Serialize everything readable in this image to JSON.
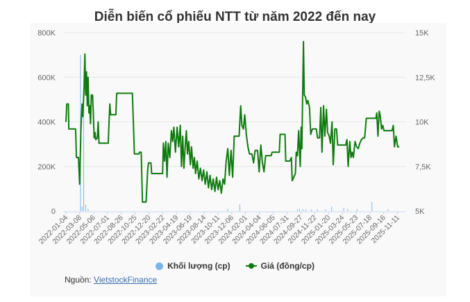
{
  "title": "Diễn biến cổ phiếu NTT từ năm 2022 đến nay",
  "legend": {
    "volume_label": "Khối lượng (cp)",
    "price_label": "Giá (đồng/cp)"
  },
  "source": {
    "prefix": "Nguồn: ",
    "link_text": "VietstockFinance"
  },
  "colors": {
    "price_line": "#0f7a0f",
    "volume_bar": "#7cb5ec",
    "grid": "#e6e6e6",
    "axis_text": "#666666"
  },
  "chart_data": {
    "type": "line",
    "title": "Diễn biến cổ phiếu NTT từ năm 2022 đến nay",
    "xlabel": "",
    "ylabel_left": "Khối lượng (cp)",
    "ylabel_right": "Giá (đồng/cp)",
    "ylim_left": [
      0,
      800000
    ],
    "ylim_right": [
      5000,
      15000
    ],
    "yticks_left": [
      "0",
      "200K",
      "400K",
      "600K",
      "800K"
    ],
    "yticks_right": [
      "5K",
      "7,5K",
      "10K",
      "12,5K",
      "15K"
    ],
    "x_tick_labels": [
      "2022-01-04",
      "2022-03-08",
      "2022-05-06",
      "2022-07-01",
      "2022-08-26",
      "2022-10-25",
      "2022-12-20",
      "2023-02-22",
      "2023-04-19",
      "2023-06-19",
      "2023-08-14",
      "2023-10-11",
      "2023-12-06",
      "2024-02-01",
      "2024-04-04",
      "2024-06-05",
      "2024-07-31",
      "2024-09-27",
      "2024-11-22",
      "2025-01-20",
      "2025-03-24",
      "2025-05-23",
      "2025-07-18",
      "2025-09-16",
      "2025-11-11"
    ],
    "grid": true,
    "legend_position": "bottom",
    "series": [
      {
        "name": "Giá (đồng/cp)",
        "type": "line",
        "axis": "right",
        "points": [
          [
            0.0,
            10000
          ],
          [
            0.002,
            11000
          ],
          [
            0.006,
            11000
          ],
          [
            0.007,
            9600
          ],
          [
            0.024,
            9600
          ],
          [
            0.026,
            8000
          ],
          [
            0.031,
            8000
          ],
          [
            0.034,
            6500
          ],
          [
            0.037,
            9500
          ],
          [
            0.04,
            11000
          ],
          [
            0.042,
            10300
          ],
          [
            0.045,
            12000
          ],
          [
            0.047,
            13800
          ],
          [
            0.049,
            11500
          ],
          [
            0.051,
            12800
          ],
          [
            0.053,
            10900
          ],
          [
            0.055,
            12500
          ],
          [
            0.057,
            10500
          ],
          [
            0.059,
            10900
          ],
          [
            0.061,
            9900
          ],
          [
            0.063,
            11500
          ],
          [
            0.066,
            11500
          ],
          [
            0.068,
            10500
          ],
          [
            0.07,
            9100
          ],
          [
            0.072,
            9400
          ],
          [
            0.074,
            9000
          ],
          [
            0.078,
            9100
          ],
          [
            0.08,
            10000
          ],
          [
            0.082,
            8800
          ],
          [
            0.105,
            8800
          ],
          [
            0.107,
            9900
          ],
          [
            0.109,
            11000
          ],
          [
            0.111,
            10400
          ],
          [
            0.124,
            10400
          ],
          [
            0.126,
            11600
          ],
          [
            0.165,
            11600
          ],
          [
            0.17,
            8200
          ],
          [
            0.181,
            8200
          ],
          [
            0.183,
            8300
          ],
          [
            0.187,
            8300
          ],
          [
            0.19,
            5500
          ],
          [
            0.199,
            5500
          ],
          [
            0.201,
            6400
          ],
          [
            0.203,
            7300
          ],
          [
            0.205,
            7700
          ],
          [
            0.211,
            7700
          ],
          [
            0.213,
            7100
          ],
          [
            0.24,
            7100
          ],
          [
            0.242,
            8800
          ],
          [
            0.245,
            7800
          ],
          [
            0.248,
            8900
          ],
          [
            0.251,
            6900
          ],
          [
            0.254,
            8800
          ],
          [
            0.258,
            8000
          ],
          [
            0.262,
            9500
          ],
          [
            0.265,
            8900
          ],
          [
            0.268,
            9700
          ],
          [
            0.272,
            8300
          ],
          [
            0.276,
            9700
          ],
          [
            0.28,
            8600
          ],
          [
            0.284,
            9800
          ],
          [
            0.287,
            7500
          ],
          [
            0.29,
            9200
          ],
          [
            0.293,
            7400
          ],
          [
            0.296,
            8500
          ],
          [
            0.299,
            9500
          ],
          [
            0.302,
            8200
          ],
          [
            0.305,
            8900
          ],
          [
            0.309,
            7600
          ],
          [
            0.312,
            8600
          ],
          [
            0.316,
            7400
          ],
          [
            0.319,
            8000
          ],
          [
            0.322,
            7100
          ],
          [
            0.326,
            7800
          ],
          [
            0.33,
            6800
          ],
          [
            0.334,
            7400
          ],
          [
            0.338,
            6700
          ],
          [
            0.342,
            7300
          ],
          [
            0.346,
            6500
          ],
          [
            0.35,
            7200
          ],
          [
            0.354,
            6300
          ],
          [
            0.358,
            7000
          ],
          [
            0.362,
            6200
          ],
          [
            0.366,
            6800
          ],
          [
            0.37,
            6100
          ],
          [
            0.374,
            6900
          ],
          [
            0.378,
            6200
          ],
          [
            0.382,
            6700
          ],
          [
            0.386,
            6000
          ],
          [
            0.39,
            6800
          ],
          [
            0.394,
            6500
          ],
          [
            0.398,
            7800
          ],
          [
            0.402,
            8500
          ],
          [
            0.406,
            7000
          ],
          [
            0.41,
            8400
          ],
          [
            0.414,
            6900
          ],
          [
            0.418,
            9200
          ],
          [
            0.43,
            9200
          ],
          [
            0.434,
            10900
          ],
          [
            0.437,
            9800
          ],
          [
            0.441,
            9600
          ],
          [
            0.444,
            10400
          ],
          [
            0.448,
            9300
          ],
          [
            0.452,
            8600
          ],
          [
            0.456,
            8200
          ],
          [
            0.462,
            8200
          ],
          [
            0.466,
            7700
          ],
          [
            0.47,
            8400
          ],
          [
            0.476,
            8400
          ],
          [
            0.48,
            7200
          ],
          [
            0.484,
            8700
          ],
          [
            0.488,
            7700
          ],
          [
            0.492,
            7200
          ],
          [
            0.496,
            8100
          ],
          [
            0.51,
            8100
          ],
          [
            0.512,
            8300
          ],
          [
            0.53,
            8300
          ],
          [
            0.532,
            9300
          ],
          [
            0.544,
            9300
          ],
          [
            0.546,
            7800
          ],
          [
            0.556,
            7800
          ],
          [
            0.56,
            8000
          ],
          [
            0.562,
            6700
          ],
          [
            0.566,
            6900
          ],
          [
            0.57,
            7100
          ],
          [
            0.572,
            8300
          ],
          [
            0.575,
            8100
          ],
          [
            0.578,
            9500
          ],
          [
            0.58,
            8500
          ],
          [
            0.582,
            7500
          ],
          [
            0.584,
            9700
          ],
          [
            0.586,
            8500
          ],
          [
            0.59,
            14500
          ],
          [
            0.592,
            11500
          ],
          [
            0.595,
            11400
          ],
          [
            0.598,
            11000
          ],
          [
            0.601,
            11200
          ],
          [
            0.605,
            10800
          ],
          [
            0.608,
            9300
          ],
          [
            0.612,
            9600
          ],
          [
            0.622,
            9600
          ],
          [
            0.625,
            9100
          ],
          [
            0.63,
            9100
          ],
          [
            0.633,
            10800
          ],
          [
            0.636,
            8300
          ],
          [
            0.64,
            10900
          ],
          [
            0.643,
            9200
          ],
          [
            0.647,
            10700
          ],
          [
            0.65,
            9400
          ],
          [
            0.654,
            9200
          ],
          [
            0.657,
            8800
          ],
          [
            0.661,
            10000
          ],
          [
            0.664,
            7600
          ],
          [
            0.668,
            9600
          ],
          [
            0.672,
            9600
          ],
          [
            0.675,
            8700
          ],
          [
            0.695,
            8700
          ],
          [
            0.698,
            9000
          ],
          [
            0.701,
            7500
          ],
          [
            0.705,
            8900
          ],
          [
            0.708,
            8000
          ],
          [
            0.711,
            8300
          ],
          [
            0.714,
            8000
          ],
          [
            0.718,
            8900
          ],
          [
            0.722,
            8600
          ],
          [
            0.726,
            8500
          ],
          [
            0.73,
            8800
          ],
          [
            0.734,
            9000
          ],
          [
            0.738,
            9100
          ],
          [
            0.742,
            9100
          ],
          [
            0.746,
            10200
          ],
          [
            0.76,
            10200
          ],
          [
            0.77,
            10200
          ],
          [
            0.772,
            10500
          ],
          [
            0.775,
            9200
          ],
          [
            0.778,
            10600
          ],
          [
            0.781,
            10300
          ],
          [
            0.784,
            9600
          ],
          [
            0.787,
            9800
          ],
          [
            0.79,
            9500
          ],
          [
            0.81,
            9500
          ],
          [
            0.813,
            9800
          ],
          [
            0.816,
            8600
          ],
          [
            0.82,
            9200
          ],
          [
            0.824,
            8600
          ],
          [
            0.828,
            8600
          ]
        ]
      },
      {
        "name": "Khối lượng (cp)",
        "type": "bar",
        "axis": "left",
        "bars": [
          [
            0.036,
            700000
          ],
          [
            0.04,
            20000
          ],
          [
            0.044,
            550000
          ],
          [
            0.049,
            30000
          ],
          [
            0.055,
            10000
          ],
          [
            0.402,
            10000
          ],
          [
            0.432,
            30000
          ],
          [
            0.575,
            8000
          ],
          [
            0.58,
            10000
          ],
          [
            0.588,
            8000
          ],
          [
            0.596,
            8000
          ],
          [
            0.61,
            8000
          ],
          [
            0.625,
            8000
          ],
          [
            0.645,
            8000
          ],
          [
            0.66,
            20000
          ],
          [
            0.69,
            15000
          ],
          [
            0.7,
            10000
          ],
          [
            0.723,
            8000
          ],
          [
            0.76,
            40000
          ],
          [
            0.8,
            8000
          ]
        ]
      }
    ]
  }
}
